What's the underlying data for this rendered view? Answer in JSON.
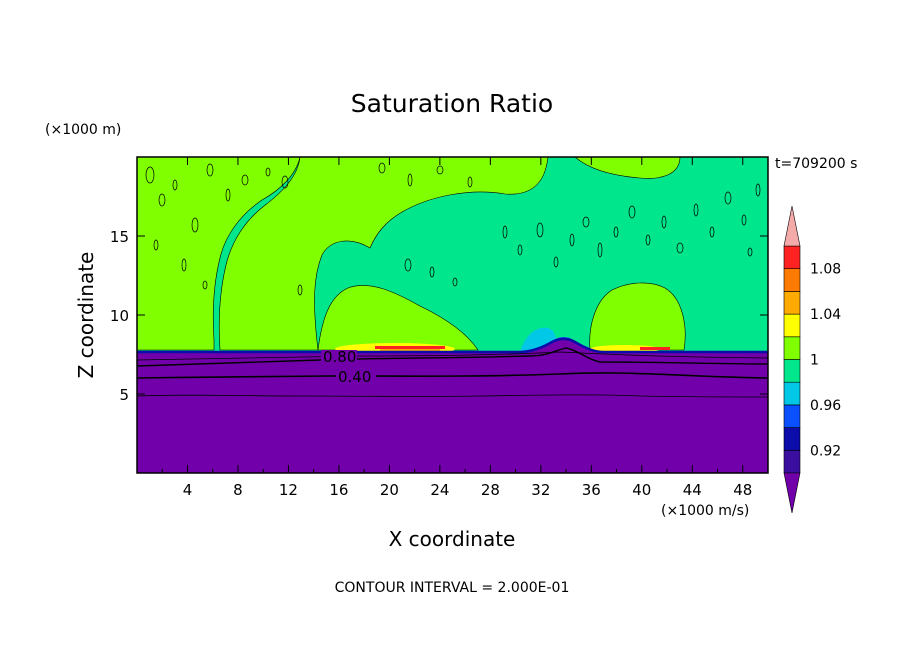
{
  "chart_data": {
    "type": "heatmap",
    "title": "Saturation Ratio",
    "xlabel": "X coordinate",
    "ylabel": "Z coordinate",
    "x_units": "(×1000 m/s)",
    "y_units": "(×1000 m)",
    "time_label": "t=709200 s",
    "footer": "CONTOUR INTERVAL = 2.000E-01",
    "xlim": [
      0,
      50
    ],
    "ylim": [
      0,
      20
    ],
    "x_ticks": [
      4,
      8,
      12,
      16,
      20,
      24,
      28,
      32,
      36,
      40,
      44,
      48
    ],
    "y_ticks": [
      5,
      10,
      15
    ],
    "contour_labels": [
      {
        "text": "0.80",
        "x": 16,
        "y": 7.3
      },
      {
        "text": "0.40",
        "x": 17.2,
        "y": 6.0
      }
    ],
    "colorbar": {
      "levels": [
        0.9,
        0.92,
        0.94,
        0.96,
        0.98,
        1.0,
        1.02,
        1.04,
        1.06,
        1.08,
        1.1
      ],
      "labels": [
        "0.92",
        "0.96",
        "1",
        "1.04",
        "1.08"
      ],
      "colors": [
        "#3a0fa0",
        "#0c0caa",
        "#0a50ff",
        "#00c8e6",
        "#00e68c",
        "#80ff00",
        "#ffff00",
        "#ffaa00",
        "#ff7a00",
        "#ff2222"
      ],
      "below_color": "#7200aa",
      "above_color": "#f5aaaa"
    },
    "regions": {
      "lower_layer": {
        "from_z": 0,
        "to_z": 7.6,
        "value": "<0.90",
        "color": "#7200aa"
      },
      "upper_domain": {
        "from_z": 7.6,
        "to_z": 20,
        "value": "0.98–1.02",
        "colors": [
          "#00e68c",
          "#80ff00"
        ]
      },
      "supersaturated_patches": [
        {
          "x_range": [
            16,
            24
          ],
          "z": 7.8,
          "max_value": 1.06
        },
        {
          "x_range": [
            37,
            42
          ],
          "z": 7.8,
          "max_value": 1.06
        }
      ],
      "subsaturated_patch": {
        "x_range": [
          30,
          33
        ],
        "z": 8.2,
        "min_value": 0.96
      }
    }
  }
}
